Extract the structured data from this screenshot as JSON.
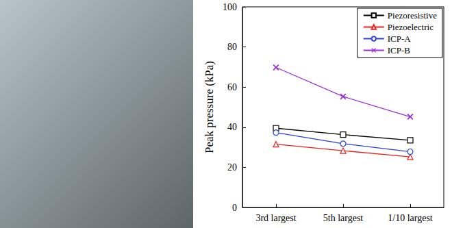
{
  "chart_data": {
    "type": "line",
    "y_label": "Peak pressure (kPa)",
    "categories": [
      "3rd largest",
      "5th largest",
      "1/10 largest"
    ],
    "series": [
      {
        "name": "Piezoresistive",
        "color": "#000000",
        "marker": "square",
        "values": [
          39.5,
          36.3,
          33.5
        ]
      },
      {
        "name": "Piezoelectric",
        "color": "#e8221b",
        "marker": "triangle",
        "values": [
          31.5,
          28.3,
          25.2
        ]
      },
      {
        "name": "ICP-A",
        "color": "#2b3fd8",
        "marker": "circle",
        "values": [
          37.3,
          31.8,
          27.8
        ]
      },
      {
        "name": "ICP-B",
        "color": "#9b2fd6",
        "marker": "x",
        "values": [
          69.8,
          55.3,
          45.2
        ]
      }
    ],
    "ylim": [
      0,
      100
    ],
    "yticks": [
      0,
      20,
      40,
      60,
      80,
      100
    ],
    "grid": false,
    "legend": "upper right"
  }
}
